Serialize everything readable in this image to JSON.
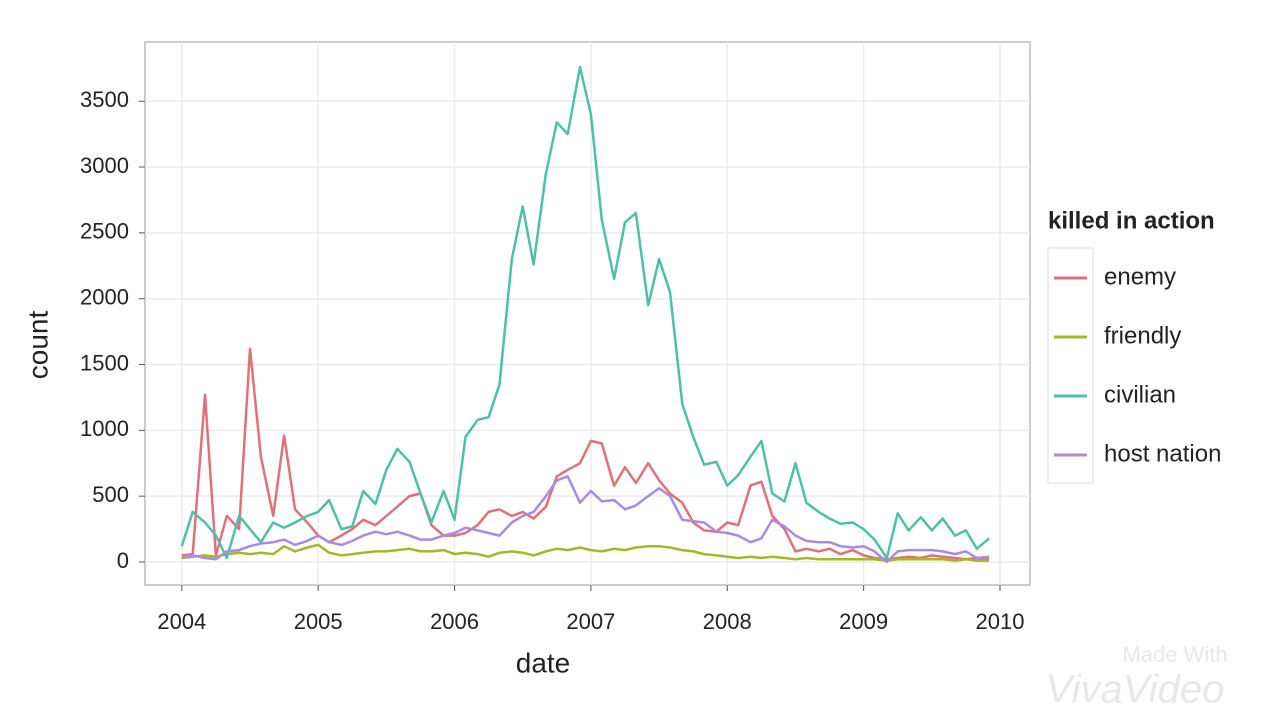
{
  "chart_data": {
    "type": "line",
    "x_label": "date",
    "y_label": "count",
    "xlim": [
      2003.73,
      2010.22
    ],
    "ylim": [
      -175,
      3950
    ],
    "xticks": [
      2004,
      2005,
      2006,
      2007,
      2008,
      2009,
      2010
    ],
    "yticks": [
      0,
      500,
      1000,
      1500,
      2000,
      2500,
      3000,
      3500
    ],
    "grid": true,
    "legend_title": "killed in action",
    "legend_position": "right",
    "x": [
      2004,
      2004.08,
      2004.17,
      2004.25,
      2004.33,
      2004.42,
      2004.5,
      2004.58,
      2004.67,
      2004.75,
      2004.83,
      2004.92,
      2005,
      2005.08,
      2005.17,
      2005.25,
      2005.33,
      2005.42,
      2005.5,
      2005.58,
      2005.67,
      2005.75,
      2005.83,
      2005.92,
      2006,
      2006.08,
      2006.17,
      2006.25,
      2006.33,
      2006.42,
      2006.5,
      2006.58,
      2006.67,
      2006.75,
      2006.83,
      2006.92,
      2007,
      2007.08,
      2007.17,
      2007.25,
      2007.33,
      2007.42,
      2007.5,
      2007.58,
      2007.67,
      2007.75,
      2007.83,
      2007.92,
      2008,
      2008.08,
      2008.17,
      2008.25,
      2008.33,
      2008.42,
      2008.5,
      2008.58,
      2008.67,
      2008.75,
      2008.83,
      2008.92,
      2009,
      2009.08,
      2009.17,
      2009.25,
      2009.33,
      2009.42,
      2009.5,
      2009.58,
      2009.67,
      2009.75,
      2009.83,
      2009.92
    ],
    "series": [
      {
        "name": "enemy",
        "color": "#e0707a",
        "values": [
          50,
          60,
          1270,
          50,
          350,
          250,
          1620,
          800,
          350,
          960,
          400,
          300,
          200,
          150,
          200,
          250,
          320,
          280,
          350,
          420,
          500,
          520,
          280,
          200,
          200,
          220,
          280,
          380,
          400,
          350,
          380,
          330,
          420,
          650,
          700,
          750,
          920,
          900,
          580,
          720,
          600,
          750,
          620,
          520,
          450,
          300,
          240,
          230,
          300,
          280,
          580,
          610,
          350,
          250,
          80,
          100,
          80,
          100,
          60,
          90,
          50,
          30,
          20,
          30,
          40,
          30,
          50,
          40,
          30,
          20,
          30,
          20
        ]
      },
      {
        "name": "friendly",
        "color": "#a7b628",
        "values": [
          30,
          40,
          50,
          40,
          60,
          70,
          60,
          70,
          60,
          120,
          80,
          110,
          130,
          70,
          50,
          60,
          70,
          80,
          80,
          90,
          100,
          80,
          80,
          90,
          60,
          70,
          60,
          40,
          70,
          80,
          70,
          50,
          80,
          100,
          90,
          110,
          90,
          80,
          100,
          90,
          110,
          120,
          120,
          110,
          90,
          80,
          60,
          50,
          40,
          30,
          40,
          30,
          40,
          30,
          20,
          30,
          20,
          20,
          20,
          20,
          20,
          20,
          10,
          20,
          20,
          20,
          20,
          20,
          10,
          20,
          10,
          10
        ]
      },
      {
        "name": "civilian",
        "color": "#4ec0a8",
        "values": [
          120,
          380,
          300,
          200,
          30,
          350,
          250,
          150,
          300,
          260,
          300,
          350,
          380,
          470,
          250,
          270,
          540,
          440,
          700,
          860,
          760,
          520,
          300,
          540,
          320,
          950,
          1080,
          1100,
          1350,
          2300,
          2700,
          2260,
          2950,
          3340,
          3250,
          3760,
          3400,
          2600,
          2150,
          2580,
          2650,
          1950,
          2300,
          2050,
          1200,
          950,
          740,
          760,
          580,
          660,
          800,
          920,
          520,
          460,
          750,
          450,
          380,
          330,
          290,
          300,
          250,
          170,
          30,
          370,
          240,
          340,
          240,
          330,
          200,
          240,
          100,
          180
        ]
      },
      {
        "name": "host nation",
        "color": "#a98be0",
        "values": [
          40,
          50,
          30,
          20,
          80,
          90,
          120,
          140,
          150,
          170,
          130,
          160,
          200,
          150,
          130,
          160,
          200,
          230,
          210,
          230,
          200,
          170,
          170,
          200,
          220,
          260,
          240,
          220,
          200,
          300,
          350,
          380,
          500,
          620,
          650,
          450,
          540,
          460,
          470,
          400,
          430,
          500,
          560,
          500,
          320,
          310,
          300,
          230,
          220,
          200,
          150,
          180,
          320,
          270,
          200,
          160,
          150,
          150,
          120,
          110,
          120,
          80,
          0,
          80,
          90,
          90,
          90,
          80,
          60,
          80,
          30,
          40
        ]
      }
    ]
  },
  "watermark": [
    "Made With",
    "VivaVideo"
  ]
}
